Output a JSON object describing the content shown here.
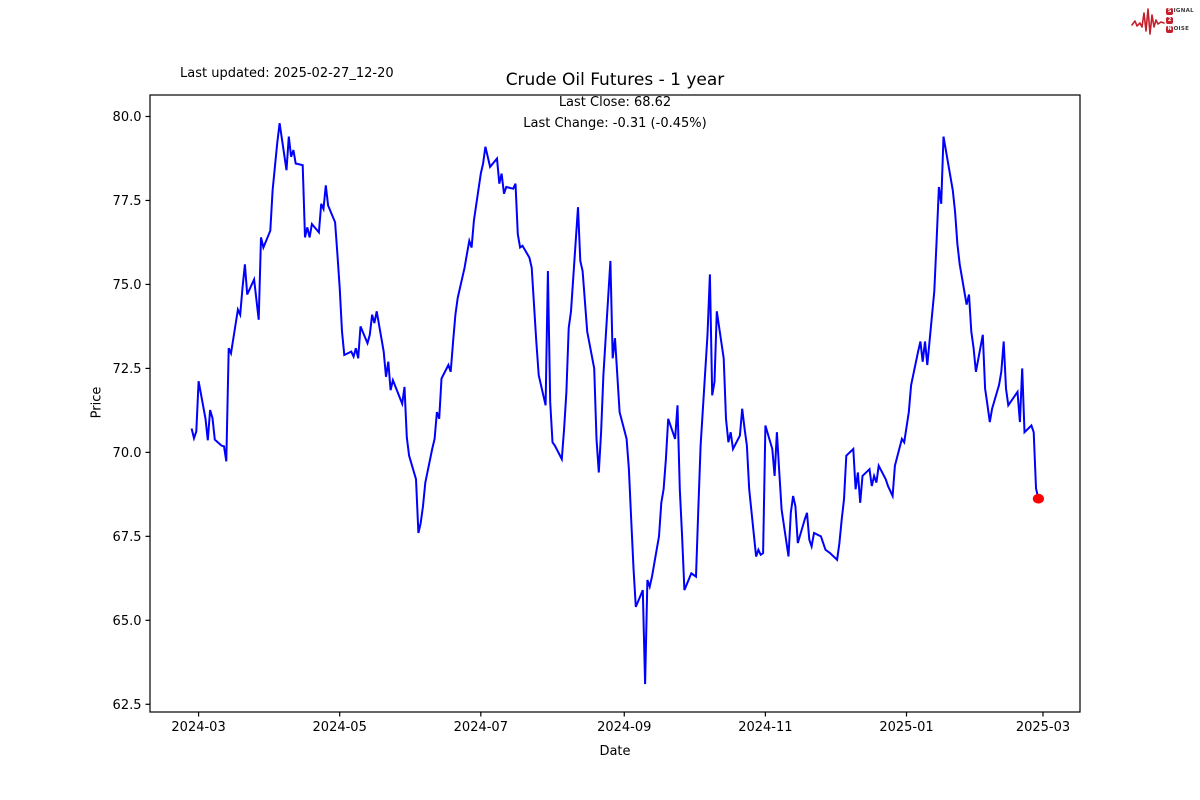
{
  "header": {
    "last_updated": "Last updated: 2025-02-27_12-20"
  },
  "logo": {
    "s": "S",
    "ignal": "IGNAL",
    "two": "2",
    "n": "N",
    "oise": "OISE",
    "accent_color": "#c41f2a",
    "text_color": "#3a3a3a"
  },
  "chart_data": {
    "type": "line",
    "title": "Crude Oil Futures - 1 year",
    "subtitle_line1": "Last Close: 68.62",
    "subtitle_line2": "Last Change: -0.31 (-0.45%)",
    "xlabel": "Date",
    "ylabel": "Price",
    "last_close": 68.62,
    "last_change": -0.31,
    "last_change_pct": -0.45,
    "line_color": "#0000ff",
    "marker_color": "#ff0000",
    "axis_color": "#000000",
    "grid": false,
    "legend": null,
    "x_ticks": [
      "2024-03",
      "2024-05",
      "2024-07",
      "2024-09",
      "2024-11",
      "2025-01",
      "2025-03"
    ],
    "y_ticks": [
      62.5,
      65.0,
      67.5,
      70.0,
      72.5,
      75.0,
      77.5,
      80.0
    ],
    "xlim": [
      "2024-02-09",
      "2025-03-17"
    ],
    "ylim": [
      62.27,
      80.64
    ],
    "series": [
      {
        "name": "price",
        "points": [
          [
            "2024-02-27",
            70.71
          ],
          [
            "2024-02-28",
            70.42
          ],
          [
            "2024-02-29",
            70.62
          ],
          [
            "2024-03-01",
            72.12
          ],
          [
            "2024-03-04",
            71.0
          ],
          [
            "2024-03-05",
            70.36
          ],
          [
            "2024-03-06",
            71.26
          ],
          [
            "2024-03-07",
            71.02
          ],
          [
            "2024-03-08",
            70.38
          ],
          [
            "2024-03-11",
            70.2
          ],
          [
            "2024-03-12",
            70.18
          ],
          [
            "2024-03-13",
            69.73
          ],
          [
            "2024-03-14",
            73.1
          ],
          [
            "2024-03-15",
            72.95
          ],
          [
            "2024-03-18",
            74.25
          ],
          [
            "2024-03-19",
            74.1
          ],
          [
            "2024-03-20",
            74.9
          ],
          [
            "2024-03-21",
            75.6
          ],
          [
            "2024-03-22",
            74.7
          ],
          [
            "2024-03-25",
            75.15
          ],
          [
            "2024-03-26",
            74.55
          ],
          [
            "2024-03-27",
            73.95
          ],
          [
            "2024-03-28",
            76.4
          ],
          [
            "2024-03-29",
            76.1
          ],
          [
            "2024-04-01",
            76.6
          ],
          [
            "2024-04-02",
            77.8
          ],
          [
            "2024-04-03",
            78.5
          ],
          [
            "2024-04-04",
            79.2
          ],
          [
            "2024-04-05",
            79.8
          ],
          [
            "2024-04-08",
            78.4
          ],
          [
            "2024-04-09",
            79.4
          ],
          [
            "2024-04-10",
            78.8
          ],
          [
            "2024-04-11",
            79.0
          ],
          [
            "2024-04-12",
            78.6
          ],
          [
            "2024-04-15",
            78.55
          ],
          [
            "2024-04-16",
            76.4
          ],
          [
            "2024-04-17",
            76.7
          ],
          [
            "2024-04-18",
            76.4
          ],
          [
            "2024-04-19",
            76.8
          ],
          [
            "2024-04-22",
            76.55
          ],
          [
            "2024-04-23",
            77.4
          ],
          [
            "2024-04-24",
            77.25
          ],
          [
            "2024-04-25",
            77.95
          ],
          [
            "2024-04-26",
            77.35
          ],
          [
            "2024-04-29",
            76.85
          ],
          [
            "2024-04-30",
            75.9
          ],
          [
            "2024-05-01",
            74.9
          ],
          [
            "2024-05-02",
            73.6
          ],
          [
            "2024-05-03",
            72.9
          ],
          [
            "2024-05-06",
            73.0
          ],
          [
            "2024-05-07",
            72.85
          ],
          [
            "2024-05-08",
            73.1
          ],
          [
            "2024-05-09",
            72.8
          ],
          [
            "2024-05-10",
            73.75
          ],
          [
            "2024-05-13",
            73.25
          ],
          [
            "2024-05-14",
            73.5
          ],
          [
            "2024-05-15",
            74.1
          ],
          [
            "2024-05-16",
            73.85
          ],
          [
            "2024-05-17",
            74.2
          ],
          [
            "2024-05-20",
            73.0
          ],
          [
            "2024-05-21",
            72.25
          ],
          [
            "2024-05-22",
            72.7
          ],
          [
            "2024-05-23",
            71.85
          ],
          [
            "2024-05-24",
            72.15
          ],
          [
            "2024-05-28",
            71.45
          ],
          [
            "2024-05-29",
            71.95
          ],
          [
            "2024-05-30",
            70.45
          ],
          [
            "2024-05-31",
            69.9
          ],
          [
            "2024-06-03",
            69.2
          ],
          [
            "2024-06-04",
            67.6
          ],
          [
            "2024-06-05",
            67.9
          ],
          [
            "2024-06-06",
            68.4
          ],
          [
            "2024-06-07",
            69.1
          ],
          [
            "2024-06-10",
            70.1
          ],
          [
            "2024-06-11",
            70.4
          ],
          [
            "2024-06-12",
            71.2
          ],
          [
            "2024-06-13",
            71.0
          ],
          [
            "2024-06-14",
            72.2
          ],
          [
            "2024-06-17",
            72.6
          ],
          [
            "2024-06-18",
            72.4
          ],
          [
            "2024-06-19",
            73.3
          ],
          [
            "2024-06-20",
            74.1
          ],
          [
            "2024-06-21",
            74.6
          ],
          [
            "2024-06-24",
            75.5
          ],
          [
            "2024-06-25",
            75.9
          ],
          [
            "2024-06-26",
            76.3
          ],
          [
            "2024-06-27",
            76.1
          ],
          [
            "2024-06-28",
            76.9
          ],
          [
            "2024-07-01",
            78.3
          ],
          [
            "2024-07-02",
            78.6
          ],
          [
            "2024-07-03",
            79.1
          ],
          [
            "2024-07-05",
            78.5
          ],
          [
            "2024-07-08",
            78.75
          ],
          [
            "2024-07-09",
            78.0
          ],
          [
            "2024-07-10",
            78.3
          ],
          [
            "2024-07-11",
            77.7
          ],
          [
            "2024-07-12",
            77.9
          ],
          [
            "2024-07-15",
            77.85
          ],
          [
            "2024-07-16",
            78.0
          ],
          [
            "2024-07-17",
            76.5
          ],
          [
            "2024-07-18",
            76.1
          ],
          [
            "2024-07-19",
            76.15
          ],
          [
            "2024-07-22",
            75.8
          ],
          [
            "2024-07-23",
            75.5
          ],
          [
            "2024-07-24",
            74.4
          ],
          [
            "2024-07-25",
            73.3
          ],
          [
            "2024-07-26",
            72.3
          ],
          [
            "2024-07-29",
            71.4
          ],
          [
            "2024-07-30",
            75.4
          ],
          [
            "2024-07-31",
            71.5
          ],
          [
            "2024-08-01",
            70.3
          ],
          [
            "2024-08-02",
            70.2
          ],
          [
            "2024-08-05",
            69.8
          ],
          [
            "2024-08-06",
            70.7
          ],
          [
            "2024-08-07",
            71.8
          ],
          [
            "2024-08-08",
            73.7
          ],
          [
            "2024-08-09",
            74.2
          ],
          [
            "2024-08-12",
            77.3
          ],
          [
            "2024-08-13",
            75.7
          ],
          [
            "2024-08-14",
            75.4
          ],
          [
            "2024-08-15",
            74.5
          ],
          [
            "2024-08-16",
            73.6
          ],
          [
            "2024-08-19",
            72.5
          ],
          [
            "2024-08-20",
            70.4
          ],
          [
            "2024-08-21",
            69.4
          ],
          [
            "2024-08-22",
            70.6
          ],
          [
            "2024-08-23",
            72.3
          ],
          [
            "2024-08-26",
            75.7
          ],
          [
            "2024-08-27",
            72.8
          ],
          [
            "2024-08-28",
            73.4
          ],
          [
            "2024-08-29",
            72.3
          ],
          [
            "2024-08-30",
            71.2
          ],
          [
            "2024-09-02",
            70.4
          ],
          [
            "2024-09-03",
            69.5
          ],
          [
            "2024-09-04",
            68.0
          ],
          [
            "2024-09-05",
            66.55
          ],
          [
            "2024-09-06",
            65.4
          ],
          [
            "2024-09-09",
            65.9
          ],
          [
            "2024-09-10",
            63.1
          ],
          [
            "2024-09-11",
            66.2
          ],
          [
            "2024-09-12",
            66.0
          ],
          [
            "2024-09-13",
            66.3
          ],
          [
            "2024-09-16",
            67.5
          ],
          [
            "2024-09-17",
            68.5
          ],
          [
            "2024-09-18",
            68.9
          ],
          [
            "2024-09-19",
            69.8
          ],
          [
            "2024-09-20",
            71.0
          ],
          [
            "2024-09-23",
            70.4
          ],
          [
            "2024-09-24",
            71.4
          ],
          [
            "2024-09-25",
            68.9
          ],
          [
            "2024-09-26",
            67.5
          ],
          [
            "2024-09-27",
            65.9
          ],
          [
            "2024-09-30",
            66.4
          ],
          [
            "2024-10-01",
            66.35
          ],
          [
            "2024-10-02",
            66.3
          ],
          [
            "2024-10-03",
            68.3
          ],
          [
            "2024-10-04",
            70.2
          ],
          [
            "2024-10-07",
            73.5
          ],
          [
            "2024-10-08",
            75.3
          ],
          [
            "2024-10-09",
            71.7
          ],
          [
            "2024-10-10",
            72.1
          ],
          [
            "2024-10-11",
            74.2
          ],
          [
            "2024-10-14",
            72.8
          ],
          [
            "2024-10-15",
            71.0
          ],
          [
            "2024-10-16",
            70.3
          ],
          [
            "2024-10-17",
            70.6
          ],
          [
            "2024-10-18",
            70.1
          ],
          [
            "2024-10-21",
            70.5
          ],
          [
            "2024-10-22",
            71.3
          ],
          [
            "2024-10-23",
            70.7
          ],
          [
            "2024-10-24",
            70.2
          ],
          [
            "2024-10-25",
            68.9
          ],
          [
            "2024-10-28",
            66.9
          ],
          [
            "2024-10-29",
            67.1
          ],
          [
            "2024-10-30",
            66.95
          ],
          [
            "2024-10-31",
            67.0
          ],
          [
            "2024-11-01",
            70.8
          ],
          [
            "2024-11-04",
            70.1
          ],
          [
            "2024-11-05",
            69.3
          ],
          [
            "2024-11-06",
            70.6
          ],
          [
            "2024-11-07",
            69.4
          ],
          [
            "2024-11-08",
            68.3
          ],
          [
            "2024-11-11",
            66.9
          ],
          [
            "2024-11-12",
            68.2
          ],
          [
            "2024-11-13",
            68.7
          ],
          [
            "2024-11-14",
            68.4
          ],
          [
            "2024-11-15",
            67.3
          ],
          [
            "2024-11-18",
            68.0
          ],
          [
            "2024-11-19",
            68.2
          ],
          [
            "2024-11-20",
            67.4
          ],
          [
            "2024-11-21",
            67.2
          ],
          [
            "2024-11-22",
            67.6
          ],
          [
            "2024-11-25",
            67.5
          ],
          [
            "2024-11-26",
            67.3
          ],
          [
            "2024-11-27",
            67.1
          ],
          [
            "2024-11-29",
            67.0
          ],
          [
            "2024-12-02",
            66.8
          ],
          [
            "2024-12-03",
            67.3
          ],
          [
            "2024-12-04",
            68.0
          ],
          [
            "2024-12-05",
            68.6
          ],
          [
            "2024-12-06",
            69.9
          ],
          [
            "2024-12-09",
            70.1
          ],
          [
            "2024-12-10",
            68.9
          ],
          [
            "2024-12-11",
            69.4
          ],
          [
            "2024-12-12",
            68.5
          ],
          [
            "2024-12-13",
            69.3
          ],
          [
            "2024-12-16",
            69.5
          ],
          [
            "2024-12-17",
            69.0
          ],
          [
            "2024-12-18",
            69.3
          ],
          [
            "2024-12-19",
            69.1
          ],
          [
            "2024-12-20",
            69.6
          ],
          [
            "2024-12-23",
            69.2
          ],
          [
            "2024-12-24",
            69.0
          ],
          [
            "2024-12-26",
            68.7
          ],
          [
            "2024-12-27",
            69.6
          ],
          [
            "2024-12-30",
            70.4
          ],
          [
            "2024-12-31",
            70.3
          ],
          [
            "2025-01-02",
            71.2
          ],
          [
            "2025-01-03",
            72.0
          ],
          [
            "2025-01-06",
            73.0
          ],
          [
            "2025-01-07",
            73.3
          ],
          [
            "2025-01-08",
            72.7
          ],
          [
            "2025-01-09",
            73.3
          ],
          [
            "2025-01-10",
            72.6
          ],
          [
            "2025-01-13",
            74.8
          ],
          [
            "2025-01-14",
            76.3
          ],
          [
            "2025-01-15",
            77.9
          ],
          [
            "2025-01-16",
            77.4
          ],
          [
            "2025-01-17",
            79.4
          ],
          [
            "2025-01-21",
            77.8
          ],
          [
            "2025-01-22",
            77.15
          ],
          [
            "2025-01-23",
            76.2
          ],
          [
            "2025-01-24",
            75.6
          ],
          [
            "2025-01-27",
            74.4
          ],
          [
            "2025-01-28",
            74.7
          ],
          [
            "2025-01-29",
            73.6
          ],
          [
            "2025-01-30",
            73.1
          ],
          [
            "2025-01-31",
            72.4
          ],
          [
            "2025-02-03",
            73.5
          ],
          [
            "2025-02-04",
            71.9
          ],
          [
            "2025-02-05",
            71.4
          ],
          [
            "2025-02-06",
            70.9
          ],
          [
            "2025-02-07",
            71.3
          ],
          [
            "2025-02-10",
            72.0
          ],
          [
            "2025-02-11",
            72.4
          ],
          [
            "2025-02-12",
            73.3
          ],
          [
            "2025-02-13",
            71.9
          ],
          [
            "2025-02-14",
            71.4
          ],
          [
            "2025-02-18",
            71.8
          ],
          [
            "2025-02-19",
            70.9
          ],
          [
            "2025-02-20",
            72.5
          ],
          [
            "2025-02-21",
            70.6
          ],
          [
            "2025-02-24",
            70.8
          ],
          [
            "2025-02-25",
            70.6
          ],
          [
            "2025-02-26",
            68.93
          ],
          [
            "2025-02-27",
            68.62
          ]
        ]
      }
    ]
  }
}
